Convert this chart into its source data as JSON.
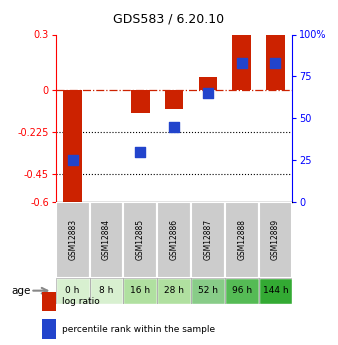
{
  "title": "GDS583 / 6.20.10",
  "samples": [
    "GSM12883",
    "GSM12884",
    "GSM12885",
    "GSM12886",
    "GSM12887",
    "GSM12888",
    "GSM12889"
  ],
  "age_labels": [
    "0 h",
    "8 h",
    "16 h",
    "28 h",
    "52 h",
    "96 h",
    "144 h"
  ],
  "age_colors": [
    "#d8f0d0",
    "#d8f0d0",
    "#b0e0a0",
    "#b0e0a0",
    "#88cc88",
    "#55bb55",
    "#33aa33"
  ],
  "log_ratios": [
    -0.6,
    0.0,
    -0.12,
    -0.1,
    0.07,
    0.3,
    0.3
  ],
  "percentile_ranks": [
    25,
    null,
    30,
    45,
    65,
    83,
    83
  ],
  "ylim_left": [
    -0.6,
    0.3
  ],
  "ylim_right": [
    0,
    100
  ],
  "yticks_left": [
    0.3,
    0.0,
    -0.225,
    -0.45,
    -0.6
  ],
  "ytick_labels_left": [
    "0.3",
    "0",
    "-0.225",
    "-0.45",
    "-0.6"
  ],
  "yticks_right": [
    100,
    75,
    50,
    25,
    0
  ],
  "ytick_labels_right": [
    "100%",
    "75",
    "50",
    "25",
    "0"
  ],
  "hlines_dotted": [
    -0.45,
    -0.225
  ],
  "bar_color": "#cc2200",
  "dot_color": "#2244cc",
  "zero_line_color": "#cc2200",
  "bar_width": 0.55,
  "dot_size": 55,
  "sample_box_color": "#cccccc",
  "legend_bar_color": "#cc2200",
  "legend_dot_color": "#2244cc"
}
